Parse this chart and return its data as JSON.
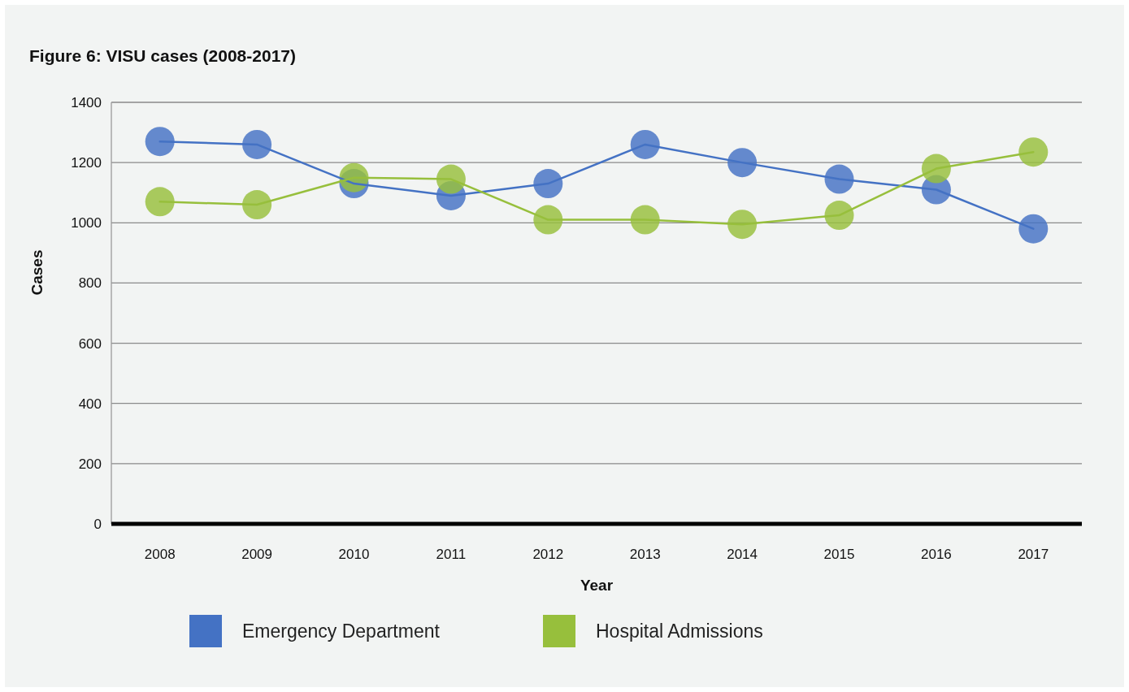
{
  "chart_data": {
    "type": "line",
    "title": "Figure 6: VISU cases (2008-2017)",
    "xlabel": "Year",
    "ylabel": "Cases",
    "categories": [
      "2008",
      "2009",
      "2010",
      "2011",
      "2012",
      "2013",
      "2014",
      "2015",
      "2016",
      "2017"
    ],
    "series": [
      {
        "name": "Emergency Department",
        "color": "#4472c4",
        "values": [
          1270,
          1260,
          1130,
          1090,
          1130,
          1260,
          1200,
          1145,
          1110,
          980
        ]
      },
      {
        "name": "Hospital Admissions",
        "color": "#97bf3c",
        "values": [
          1070,
          1060,
          1150,
          1145,
          1010,
          1010,
          995,
          1025,
          1180,
          1235
        ]
      }
    ],
    "ylim": [
      0,
      1400
    ],
    "yticks": [
      0,
      200,
      400,
      600,
      800,
      1000,
      1200,
      1400
    ],
    "grid": "y",
    "legend": "bottom",
    "marker": "circle",
    "line_style": "solid"
  }
}
